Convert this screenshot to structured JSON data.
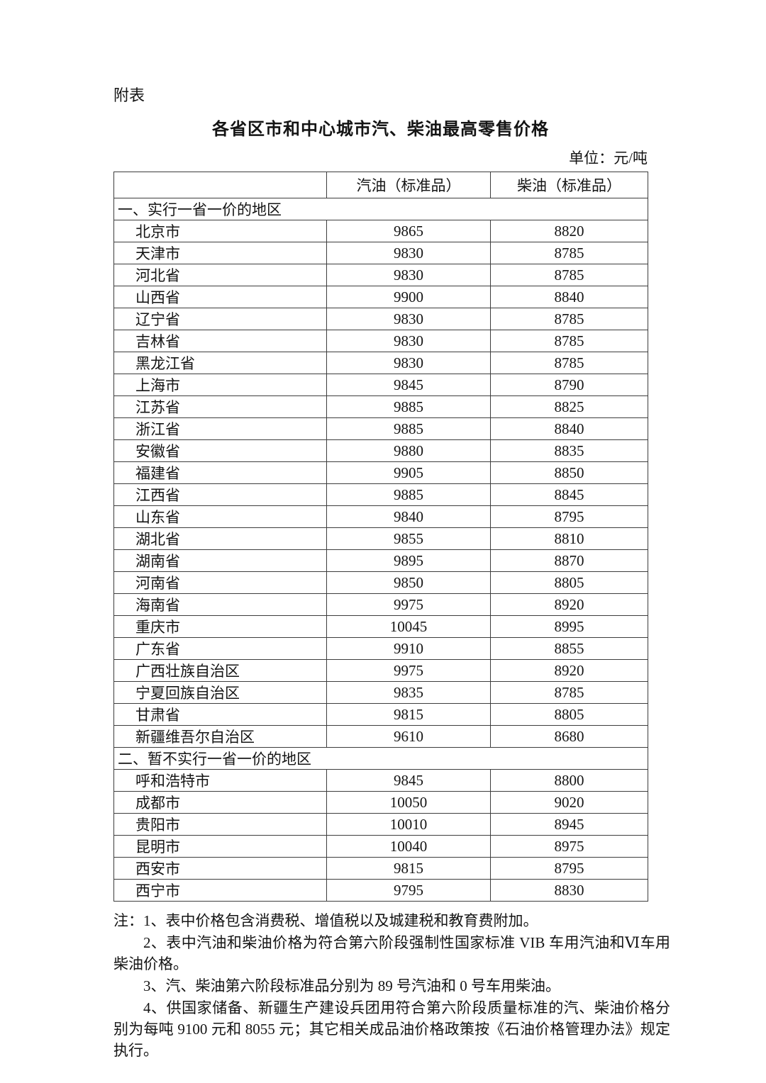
{
  "page": {
    "appendix_label": "附表",
    "title": "各省区市和中心城市汽、柴油最高零售价格",
    "unit_label": "单位：元/吨"
  },
  "table": {
    "columns": [
      "",
      "汽油（标准品）",
      "柴油（标准品）"
    ],
    "sections": [
      {
        "label": "一、实行一省一价的地区",
        "rows": [
          {
            "region": "北京市",
            "gasoline": "9865",
            "diesel": "8820"
          },
          {
            "region": "天津市",
            "gasoline": "9830",
            "diesel": "8785"
          },
          {
            "region": "河北省",
            "gasoline": "9830",
            "diesel": "8785"
          },
          {
            "region": "山西省",
            "gasoline": "9900",
            "diesel": "8840"
          },
          {
            "region": "辽宁省",
            "gasoline": "9830",
            "diesel": "8785"
          },
          {
            "region": "吉林省",
            "gasoline": "9830",
            "diesel": "8785"
          },
          {
            "region": "黑龙江省",
            "gasoline": "9830",
            "diesel": "8785"
          },
          {
            "region": "上海市",
            "gasoline": "9845",
            "diesel": "8790"
          },
          {
            "region": "江苏省",
            "gasoline": "9885",
            "diesel": "8825"
          },
          {
            "region": "浙江省",
            "gasoline": "9885",
            "diesel": "8840"
          },
          {
            "region": "安徽省",
            "gasoline": "9880",
            "diesel": "8835"
          },
          {
            "region": "福建省",
            "gasoline": "9905",
            "diesel": "8850"
          },
          {
            "region": "江西省",
            "gasoline": "9885",
            "diesel": "8845"
          },
          {
            "region": "山东省",
            "gasoline": "9840",
            "diesel": "8795"
          },
          {
            "region": "湖北省",
            "gasoline": "9855",
            "diesel": "8810"
          },
          {
            "region": "湖南省",
            "gasoline": "9895",
            "diesel": "8870"
          },
          {
            "region": "河南省",
            "gasoline": "9850",
            "diesel": "8805"
          },
          {
            "region": "海南省",
            "gasoline": "9975",
            "diesel": "8920"
          },
          {
            "region": "重庆市",
            "gasoline": "10045",
            "diesel": "8995"
          },
          {
            "region": "广东省",
            "gasoline": "9910",
            "diesel": "8855"
          },
          {
            "region": "广西壮族自治区",
            "gasoline": "9975",
            "diesel": "8920"
          },
          {
            "region": "宁夏回族自治区",
            "gasoline": "9835",
            "diesel": "8785"
          },
          {
            "region": "甘肃省",
            "gasoline": "9815",
            "diesel": "8805"
          },
          {
            "region": "新疆维吾尔自治区",
            "gasoline": "9610",
            "diesel": "8680"
          }
        ]
      },
      {
        "label": "二、暂不实行一省一价的地区",
        "rows": [
          {
            "region": "呼和浩特市",
            "gasoline": "9845",
            "diesel": "8800"
          },
          {
            "region": "成都市",
            "gasoline": "10050",
            "diesel": "9020"
          },
          {
            "region": "贵阳市",
            "gasoline": "10010",
            "diesel": "8945"
          },
          {
            "region": "昆明市",
            "gasoline": "10040",
            "diesel": "8975"
          },
          {
            "region": "西安市",
            "gasoline": "9815",
            "diesel": "8795"
          },
          {
            "region": "西宁市",
            "gasoline": "9795",
            "diesel": "8830"
          }
        ]
      }
    ]
  },
  "notes": [
    "注：1、表中价格包含消费税、增值税以及城建税和教育费附加。",
    "2、表中汽油和柴油价格为符合第六阶段强制性国家标准 VIB 车用汽油和Ⅵ车用柴油价格。",
    "3、汽、柴油第六阶段标准品分别为 89 号汽油和 0 号车用柴油。",
    "4、供国家储备、新疆生产建设兵团用符合第六阶段质量标准的汽、柴油价格分别为每吨 9100 元和 8055 元；其它相关成品油价格政策按《石油价格管理办法》规定执行。"
  ]
}
